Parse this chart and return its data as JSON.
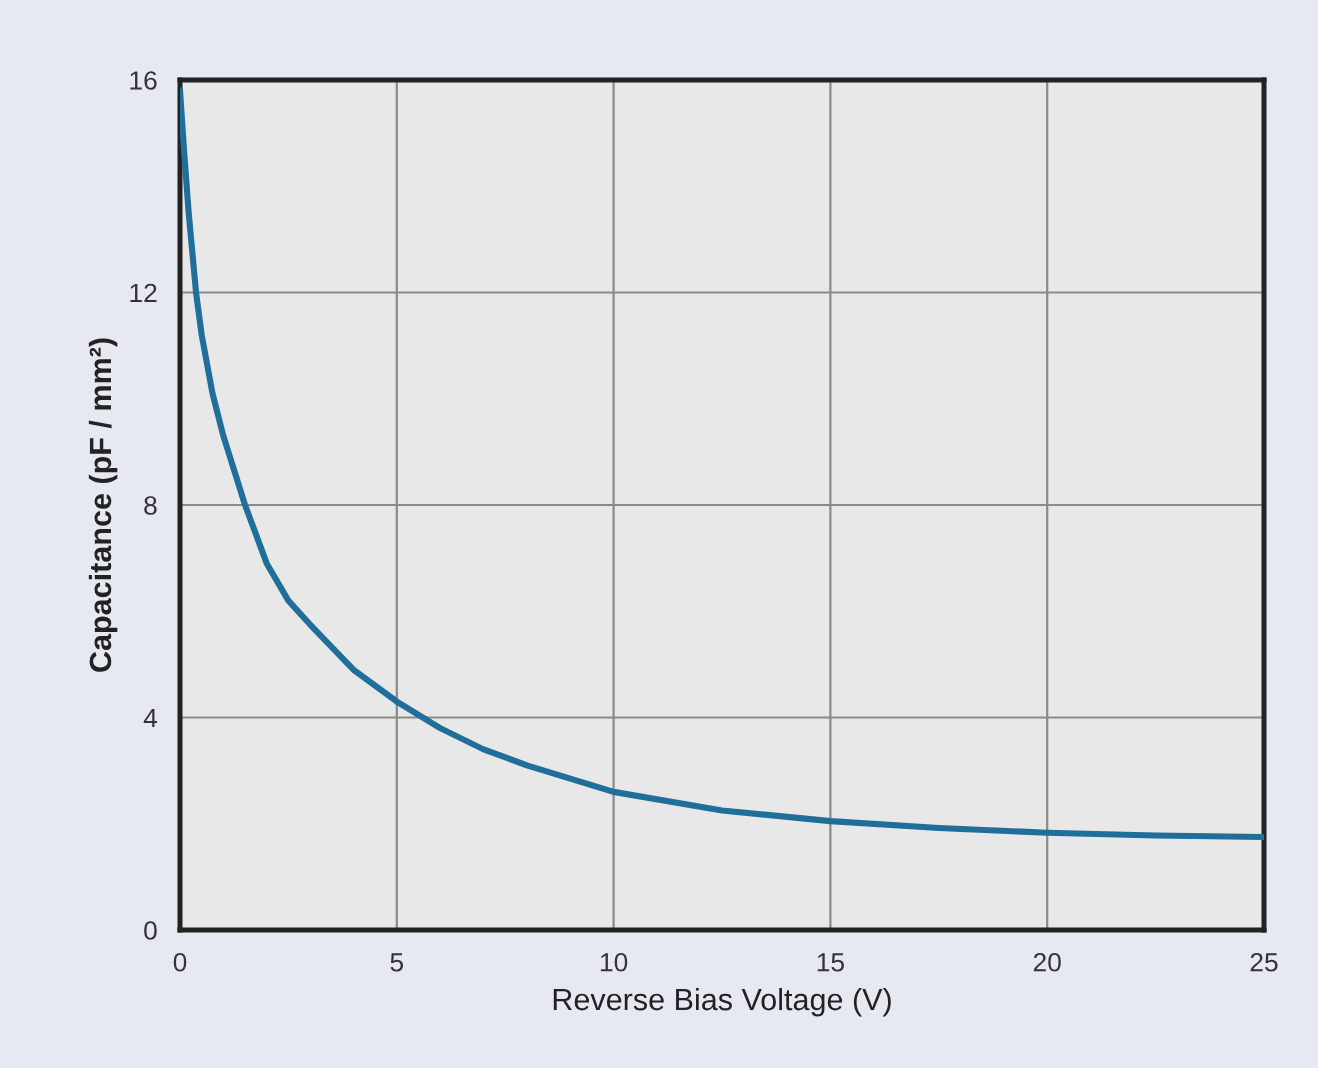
{
  "chart_data": {
    "type": "line",
    "xlabel": "Reverse Bias Voltage (V)",
    "ylabel": "Capacitance (pF / mm²)",
    "x": [
      0,
      0.1,
      0.2,
      0.37,
      0.5,
      0.75,
      1,
      1.5,
      2,
      2.5,
      3,
      4,
      5,
      6,
      7,
      8,
      10,
      12.5,
      15,
      17.5,
      20,
      22.5,
      25
    ],
    "series": [
      {
        "color": "#1f6f9a",
        "values": [
          15.8,
          14.6,
          13.5,
          12,
          11.2,
          10.1,
          9.3,
          8,
          6.9,
          6.2,
          5.75,
          4.9,
          4.3,
          3.8,
          3.4,
          3.1,
          2.6,
          2.25,
          2.05,
          1.92,
          1.83,
          1.78,
          1.75
        ]
      }
    ],
    "xlim": [
      0,
      25
    ],
    "ylim": [
      0,
      16
    ],
    "xticks": [
      0,
      5,
      10,
      15,
      20,
      25
    ],
    "yticks": [
      0,
      4,
      8,
      12,
      16
    ],
    "grid": true,
    "marker": "none",
    "line_style": "solid"
  }
}
